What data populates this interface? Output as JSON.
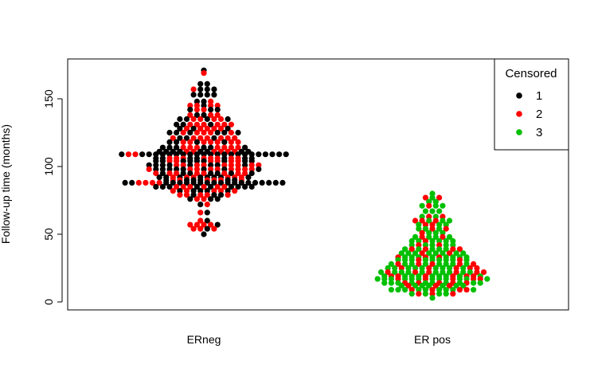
{
  "chart_data": {
    "type": "scatter",
    "subtype": "beeswarm",
    "title": "",
    "xlabel": "",
    "ylabel": "Follow-up time (months)",
    "categories": [
      "ERneg",
      "ER pos"
    ],
    "ylim": [
      -5,
      180
    ],
    "yticks": [
      0,
      50,
      100,
      150
    ],
    "grid": false,
    "legend": {
      "title": "Censored",
      "placement": "top-right",
      "entries": [
        {
          "label": "1",
          "color": "#000000"
        },
        {
          "label": "2",
          "color": "#ff0000"
        },
        {
          "label": "3",
          "color": "#00c000"
        }
      ]
    },
    "groups": [
      {
        "category": "ERneg",
        "rows": [
          {
            "y": 171,
            "colors": "k"
          },
          {
            "y": 169,
            "colors": "r"
          },
          {
            "y": 161,
            "colors": "kk"
          },
          {
            "y": 157,
            "colors": "rkkk"
          },
          {
            "y": 153,
            "colors": "kkkk"
          },
          {
            "y": 148,
            "colors": "kkr"
          },
          {
            "y": 145,
            "colors": "rrkrr"
          },
          {
            "y": 142,
            "colors": "krrkk"
          },
          {
            "y": 138,
            "colors": "rkkrr"
          },
          {
            "y": 135,
            "colors": "kkrrkrrk"
          },
          {
            "y": 131,
            "colors": "kkrrrkrrr"
          },
          {
            "y": 128,
            "colors": "krkrrrrk"
          },
          {
            "y": 125,
            "colors": "kkrkrrrkkrk"
          },
          {
            "y": 121,
            "colors": "rkkrrrkrrr"
          },
          {
            "y": 118,
            "colors": "kkrrkrrrkrr"
          },
          {
            "y": 114,
            "colors": "kkkrrrkkrrrrk"
          },
          {
            "y": 111,
            "colors": "kkkkrrkkrrrrkk"
          },
          {
            "y": 109,
            "colors": "krrkkkkkkkkkkkkkkkkkkkkkk"
          },
          {
            "y": 106,
            "colors": "kkrrrkkrrrkrrkk"
          },
          {
            "y": 104,
            "colors": "kkrrkkkkrrkrrkk"
          },
          {
            "y": 101,
            "colors": "kkkkrrkrrkkrrrkrr"
          },
          {
            "y": 98,
            "colors": "rkkkkkrrkrrkrrrrk"
          },
          {
            "y": 95,
            "colors": "rkrrkkrrkkrkrrk"
          },
          {
            "y": 92,
            "colors": "kkrkrrkkkkrrrk"
          },
          {
            "y": 90,
            "colors": "krrkkkrrrkkr"
          },
          {
            "y": 88,
            "colors": "kkrrrrkkkkkkkkkkkkkkkkkk"
          },
          {
            "y": 85,
            "colors": "kkkrrrkrkrrkkkk"
          },
          {
            "y": 82,
            "colors": "rkrkkkrrkr"
          },
          {
            "y": 79,
            "colors": "rrkrrkkr"
          },
          {
            "y": 76,
            "colors": "krrkk"
          },
          {
            "y": 72,
            "colors": "kr"
          },
          {
            "y": 66,
            "colors": "rk"
          },
          {
            "y": 60,
            "colors": "rk"
          },
          {
            "y": 57,
            "colors": "rrrrk"
          },
          {
            "y": 54,
            "colors": "rrkr"
          },
          {
            "y": 50,
            "colors": "k"
          }
        ]
      },
      {
        "category": "ER pos",
        "rows": [
          {
            "y": 80,
            "colors": "g"
          },
          {
            "y": 77,
            "colors": "rgr"
          },
          {
            "y": 74,
            "colors": "gg"
          },
          {
            "y": 71,
            "colors": "grgg"
          },
          {
            "y": 67,
            "colors": "ggg"
          },
          {
            "y": 63,
            "colors": "grgr"
          },
          {
            "y": 60,
            "colors": "rrgrgg"
          },
          {
            "y": 57,
            "colors": "grrgg"
          },
          {
            "y": 54,
            "colors": "ggrgr"
          },
          {
            "y": 51,
            "colors": "rggg"
          },
          {
            "y": 48,
            "colors": "grggrg"
          },
          {
            "y": 45,
            "colors": "ggrgggg"
          },
          {
            "y": 42,
            "colors": "grggrgg"
          },
          {
            "y": 39,
            "colors": "grgrgggrr"
          },
          {
            "y": 36,
            "colors": "gggrgggrgg"
          },
          {
            "y": 33,
            "colors": "rgggrgrgggg"
          },
          {
            "y": 31,
            "colors": "gggrgggggrg"
          },
          {
            "y": 28,
            "colors": "grggrgrgggrgr"
          },
          {
            "y": 25,
            "colors": "ggrgggrgggrgrr"
          },
          {
            "y": 22,
            "colors": "grgggrgrgggrggrr"
          },
          {
            "y": 19,
            "colors": "grrgggrgggrgrrg"
          },
          {
            "y": 17,
            "colors": "gggrgggrgggrggrrg"
          },
          {
            "y": 14,
            "colors": "gggrgrggrgrgrgg"
          },
          {
            "y": 12,
            "colors": "grgggrgrgg"
          },
          {
            "y": 9,
            "colors": "gggrggrgggrrg"
          },
          {
            "y": 6,
            "colors": "grgrggr"
          },
          {
            "y": 3,
            "colors": "g"
          }
        ]
      }
    ]
  }
}
